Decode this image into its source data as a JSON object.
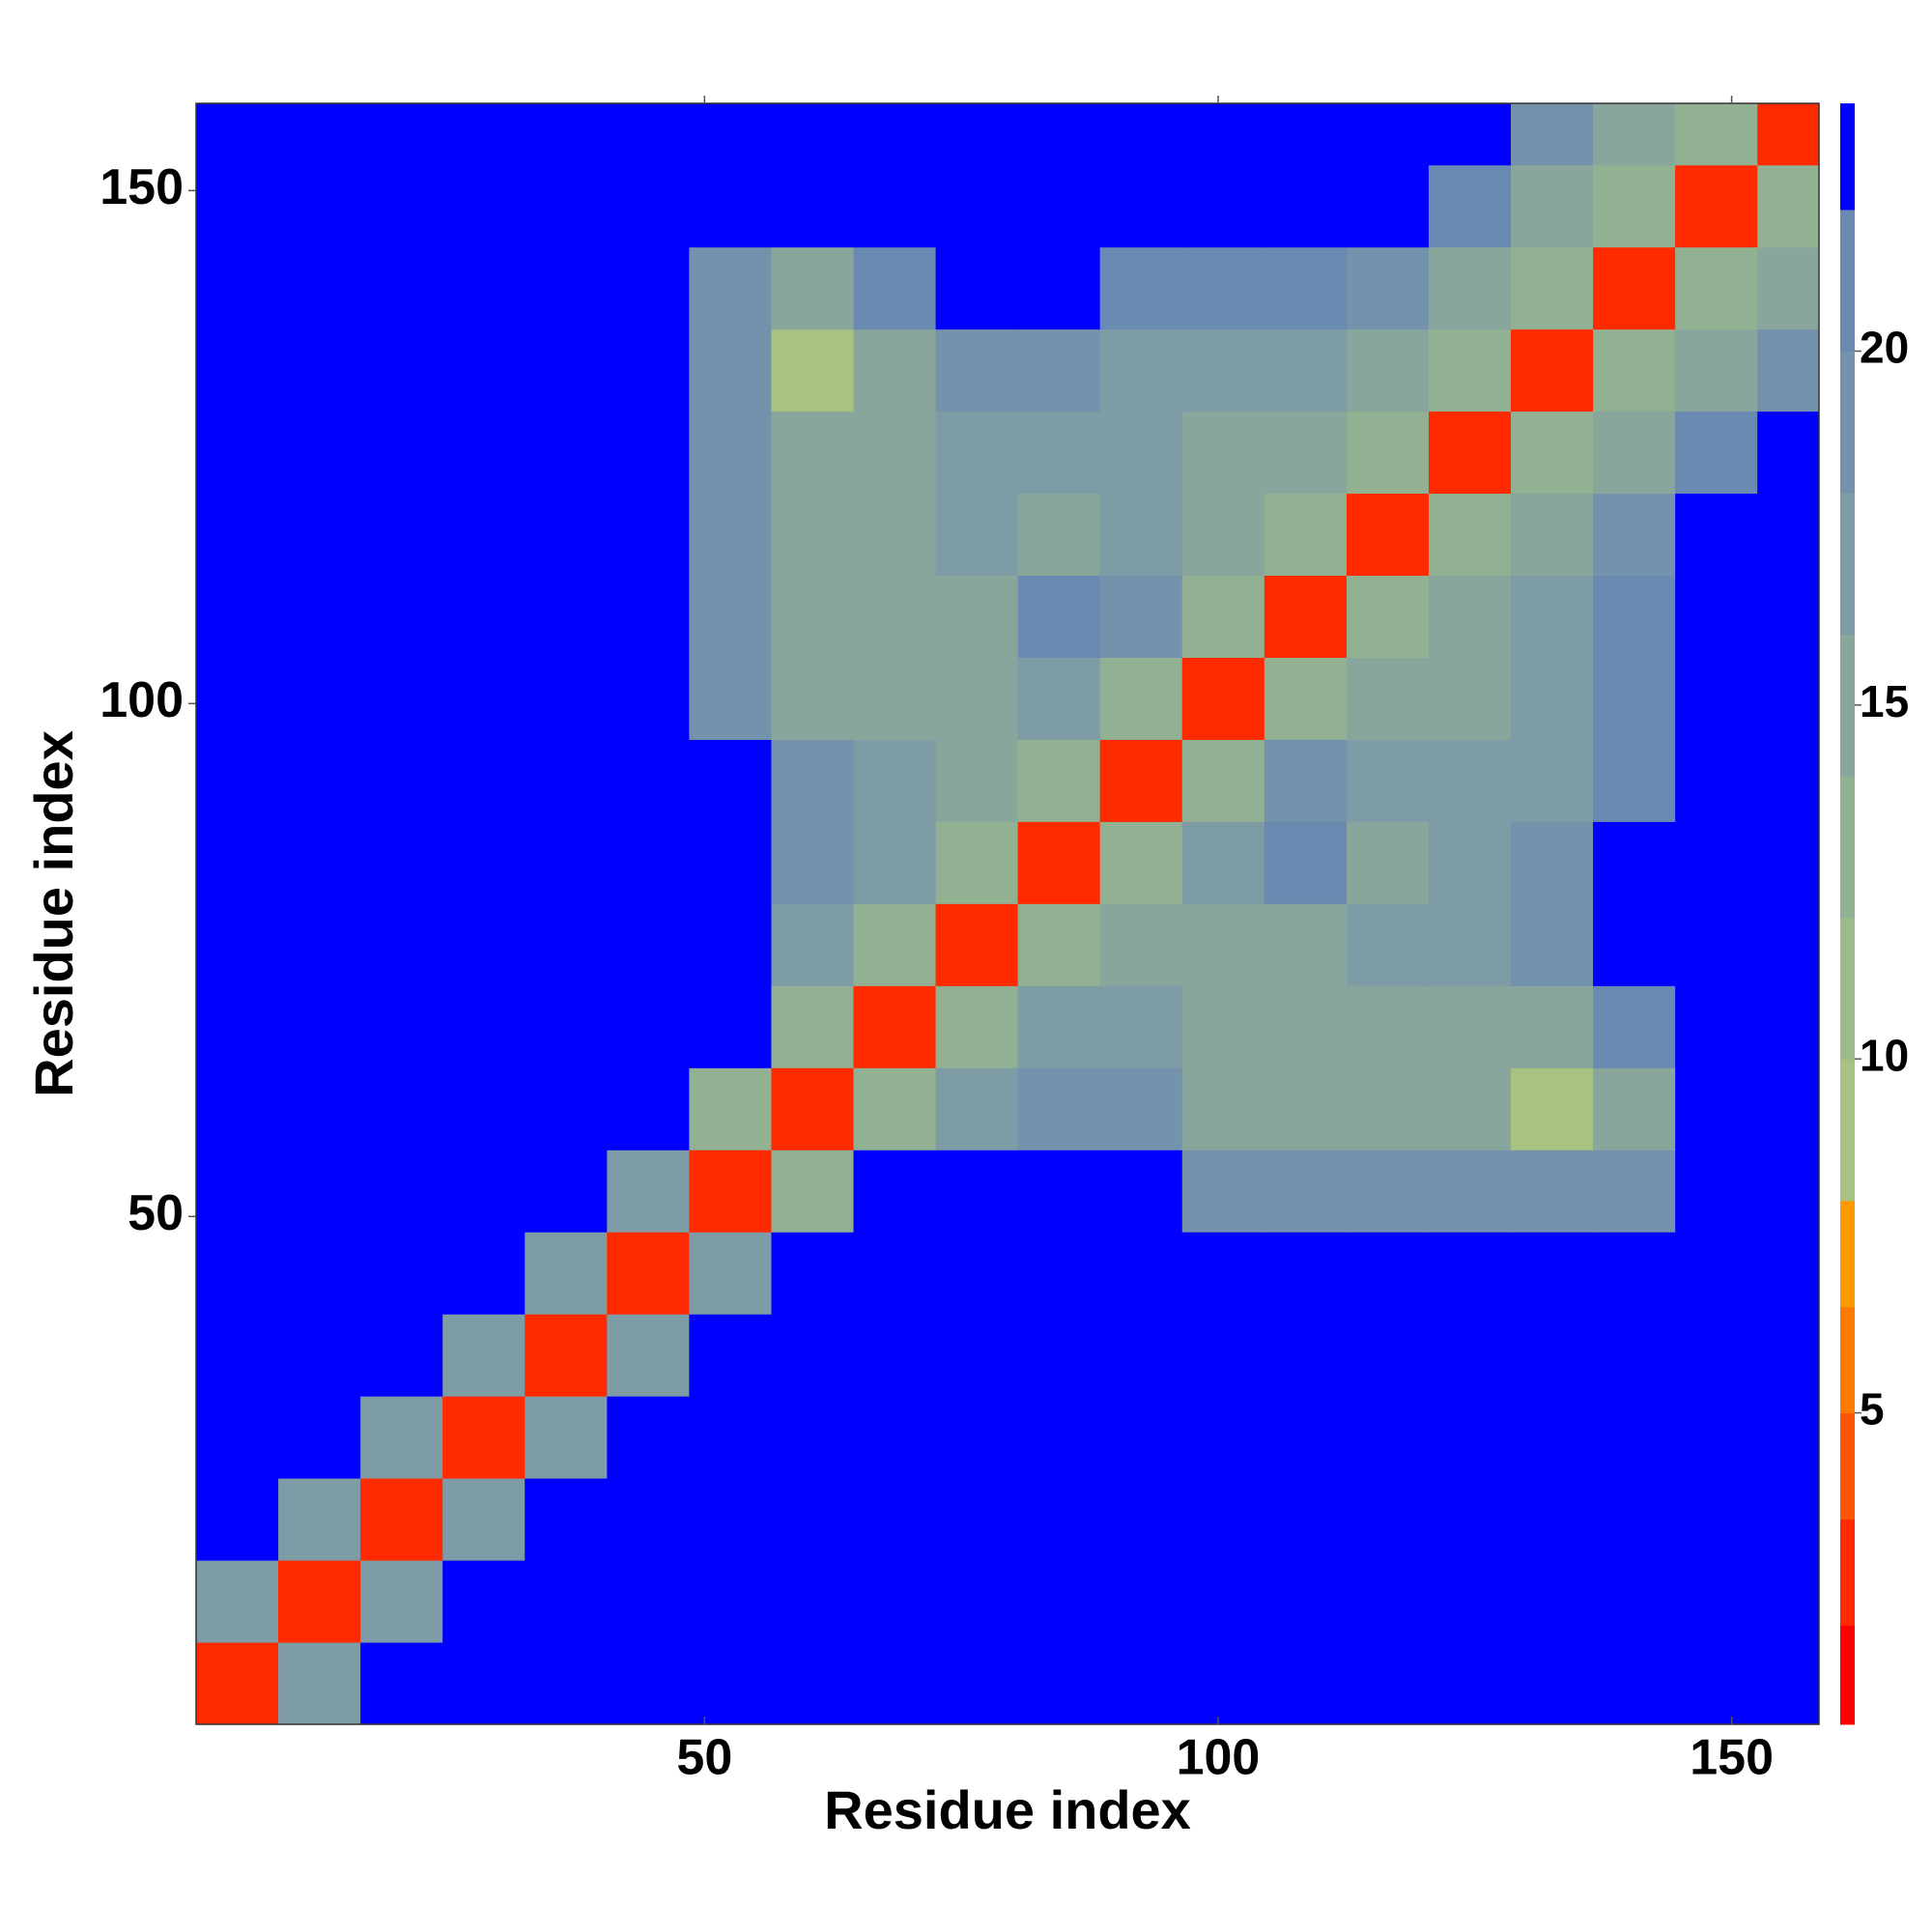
{
  "chart_data": {
    "type": "heatmap",
    "xlabel": "Residue index",
    "ylabel": "Residue index",
    "xlim": [
      0.5,
      158.5
    ],
    "ylim": [
      0.5,
      158.5
    ],
    "xticks": [
      50,
      100,
      150
    ],
    "yticks": [
      50,
      100,
      150
    ],
    "x_edges": [
      0.5,
      8.5,
      16.5,
      24.5,
      32.5,
      40.5,
      48.5,
      56.5,
      64.5,
      72.5,
      80.5,
      88.5,
      96.5,
      104.5,
      112.5,
      120.5,
      128.5,
      136.5,
      144.5,
      152.5,
      158.5
    ],
    "y_edges": [
      0.5,
      8.5,
      16.5,
      24.5,
      32.5,
      40.5,
      48.5,
      56.5,
      64.5,
      72.5,
      80.5,
      88.5,
      96.5,
      104.5,
      112.5,
      120.5,
      128.5,
      136.5,
      144.5,
      152.5,
      158.5
    ],
    "z": [
      [
        3,
        16,
        23,
        23,
        23,
        23,
        23,
        23,
        23,
        23,
        23,
        23,
        23,
        23,
        23,
        23,
        23,
        23,
        23,
        23
      ],
      [
        16,
        3,
        16,
        23,
        23,
        23,
        23,
        23,
        23,
        23,
        23,
        23,
        23,
        23,
        23,
        23,
        23,
        23,
        23,
        23
      ],
      [
        23,
        16,
        3,
        16,
        23,
        23,
        23,
        23,
        23,
        23,
        23,
        23,
        23,
        23,
        23,
        23,
        23,
        23,
        23,
        23
      ],
      [
        23,
        23,
        16,
        3,
        16,
        23,
        23,
        23,
        23,
        23,
        23,
        23,
        23,
        23,
        23,
        23,
        23,
        23,
        23,
        23
      ],
      [
        23,
        23,
        23,
        16,
        3,
        16,
        23,
        23,
        23,
        23,
        23,
        23,
        23,
        23,
        23,
        23,
        23,
        23,
        23,
        23
      ],
      [
        23,
        23,
        23,
        23,
        16,
        3,
        16,
        23,
        23,
        23,
        23,
        23,
        23,
        23,
        23,
        23,
        23,
        23,
        23,
        23
      ],
      [
        23,
        23,
        23,
        23,
        23,
        16,
        3,
        12,
        23,
        23,
        23,
        23,
        19,
        19,
        19,
        19,
        19,
        19,
        23,
        23
      ],
      [
        23,
        23,
        23,
        23,
        23,
        23,
        12,
        3,
        12,
        17,
        19,
        19,
        14,
        14,
        14,
        14,
        9,
        14,
        23,
        23
      ],
      [
        23,
        23,
        23,
        23,
        23,
        23,
        23,
        12,
        3,
        12,
        16,
        16,
        15,
        15,
        15,
        15,
        15,
        20,
        23,
        23
      ],
      [
        23,
        23,
        23,
        23,
        23,
        23,
        23,
        17,
        12,
        3,
        12,
        15,
        15,
        15,
        16,
        17,
        19,
        23,
        23,
        23
      ],
      [
        23,
        23,
        23,
        23,
        23,
        23,
        23,
        19,
        16,
        12,
        3,
        12,
        17,
        21,
        15,
        17,
        18,
        23,
        23,
        23
      ],
      [
        23,
        23,
        23,
        23,
        23,
        23,
        23,
        19,
        16,
        15,
        12,
        3,
        12,
        18,
        17,
        16,
        16,
        21,
        23,
        23
      ],
      [
        23,
        23,
        23,
        23,
        23,
        23,
        19,
        14,
        15,
        15,
        17,
        12,
        3,
        12,
        15,
        15,
        16,
        20,
        23,
        23
      ],
      [
        23,
        23,
        23,
        23,
        23,
        23,
        19,
        14,
        15,
        15,
        21,
        18,
        12,
        3,
        12,
        14,
        16,
        20,
        23,
        23
      ],
      [
        23,
        23,
        23,
        23,
        23,
        23,
        19,
        14,
        15,
        16,
        15,
        17,
        15,
        12,
        3,
        12,
        14,
        18,
        23,
        23
      ],
      [
        23,
        23,
        23,
        23,
        23,
        23,
        19,
        14,
        15,
        17,
        17,
        16,
        15,
        14,
        12,
        3,
        12,
        15,
        20,
        23
      ],
      [
        23,
        23,
        23,
        23,
        23,
        23,
        19,
        9,
        15,
        19,
        18,
        16,
        16,
        16,
        14,
        12,
        3,
        12,
        15,
        19
      ],
      [
        23,
        23,
        23,
        23,
        23,
        23,
        19,
        14,
        20,
        23,
        23,
        21,
        20,
        20,
        18,
        15,
        12,
        3,
        12,
        15
      ],
      [
        23,
        23,
        23,
        23,
        23,
        23,
        23,
        23,
        23,
        23,
        23,
        23,
        23,
        23,
        23,
        20,
        15,
        12,
        3,
        12
      ],
      [
        23,
        23,
        23,
        23,
        23,
        23,
        23,
        23,
        23,
        23,
        23,
        23,
        23,
        23,
        23,
        23,
        19,
        15,
        12,
        3
      ]
    ],
    "levels": [
      0.6,
      2,
      3.5,
      5,
      6.5,
      8,
      10,
      12,
      14,
      16,
      18,
      20,
      22,
      23.5
    ],
    "colors": [
      "#ff0000",
      "#ff2a00",
      "#ff5500",
      "#ff7a00",
      "#ff9900",
      "#a8c282",
      "#9cba8a",
      "#92b092",
      "#88a69c",
      "#7e9ca6",
      "#7492ac",
      "#6a8ab2",
      "#0000ff"
    ],
    "colorbar_ticks": [
      5,
      10,
      15,
      20
    ]
  }
}
